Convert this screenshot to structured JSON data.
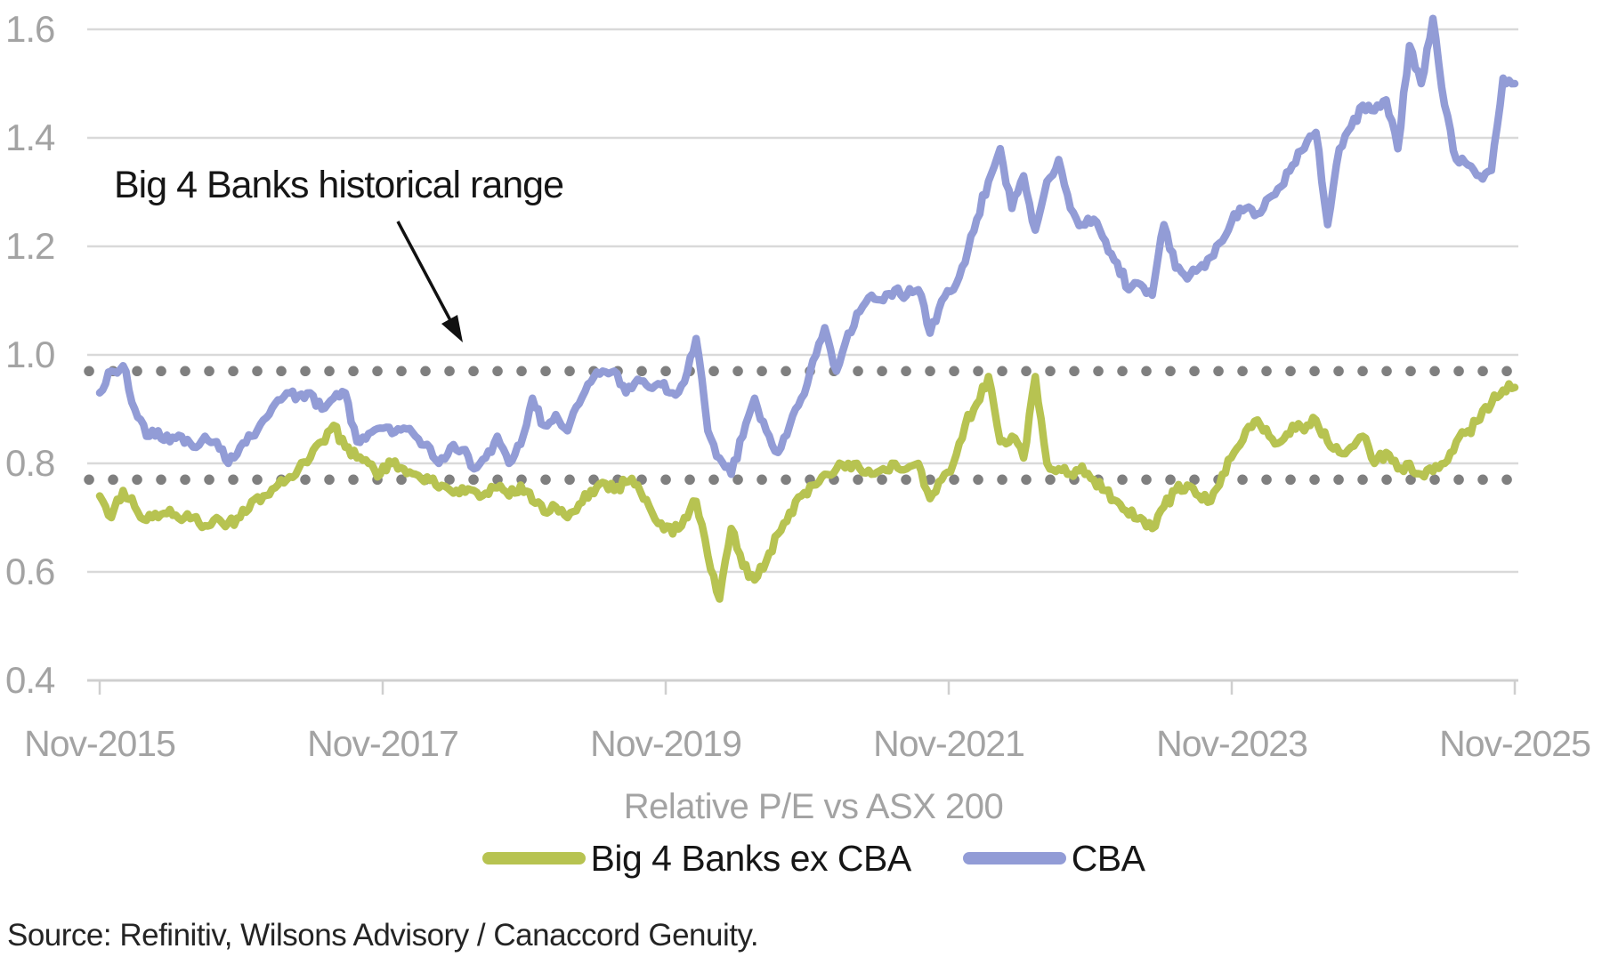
{
  "chart_data": {
    "type": "line",
    "subtitle": "Relative P/E vs ASX 200",
    "x_tick_labels": [
      "Nov-2015",
      "Nov-2017",
      "Nov-2019",
      "Nov-2021",
      "Nov-2023",
      "Nov-2025"
    ],
    "y_tick_labels": [
      "1.6",
      "1.4",
      "1.2",
      "1.0",
      "0.8",
      "0.6",
      "0.4"
    ],
    "y_ticks": [
      1.6,
      1.4,
      1.2,
      1.0,
      0.8,
      0.6,
      0.4
    ],
    "ylim": [
      0.4,
      1.6
    ],
    "x_start": "Nov-2015",
    "x_end": "Nov-2025",
    "points_interval": "monthly",
    "grid": "horizontal",
    "legend_position": "bottom",
    "reference_lines": {
      "label": "Big 4 Banks historical range",
      "upper": 0.97,
      "lower": 0.77,
      "style": "dotted",
      "color": "#7f7f7f"
    },
    "series": [
      {
        "name": "Big 4 Banks ex CBA",
        "color": "#b7c351",
        "values": [
          0.74,
          0.7,
          0.75,
          0.72,
          0.695,
          0.7,
          0.715,
          0.695,
          0.7,
          0.685,
          0.7,
          0.69,
          0.7,
          0.73,
          0.74,
          0.755,
          0.77,
          0.79,
          0.81,
          0.84,
          0.87,
          0.83,
          0.81,
          0.8,
          0.78,
          0.8,
          0.79,
          0.78,
          0.775,
          0.755,
          0.75,
          0.755,
          0.75,
          0.745,
          0.755,
          0.74,
          0.76,
          0.73,
          0.71,
          0.72,
          0.7,
          0.725,
          0.75,
          0.765,
          0.75,
          0.765,
          0.76,
          0.72,
          0.69,
          0.67,
          0.7,
          0.73,
          0.63,
          0.55,
          0.68,
          0.61,
          0.585,
          0.62,
          0.67,
          0.71,
          0.74,
          0.76,
          0.78,
          0.79,
          0.8,
          0.79,
          0.78,
          0.79,
          0.8,
          0.79,
          0.8,
          0.735,
          0.77,
          0.8,
          0.87,
          0.91,
          0.96,
          0.84,
          0.85,
          0.81,
          0.96,
          0.8,
          0.79,
          0.78,
          0.795,
          0.77,
          0.75,
          0.73,
          0.705,
          0.7,
          0.68,
          0.72,
          0.75,
          0.76,
          0.74,
          0.73,
          0.78,
          0.82,
          0.86,
          0.88,
          0.85,
          0.84,
          0.87,
          0.86,
          0.88,
          0.84,
          0.82,
          0.83,
          0.85,
          0.8,
          0.82,
          0.79,
          0.8,
          0.78,
          0.785,
          0.8,
          0.84,
          0.86,
          0.88,
          0.91,
          0.935,
          0.94
        ]
      },
      {
        "name": "CBA",
        "color": "#929cd6",
        "values": [
          0.93,
          0.97,
          0.98,
          0.9,
          0.85,
          0.86,
          0.84,
          0.85,
          0.83,
          0.85,
          0.84,
          0.8,
          0.83,
          0.85,
          0.88,
          0.91,
          0.93,
          0.925,
          0.93,
          0.9,
          0.92,
          0.93,
          0.84,
          0.855,
          0.865,
          0.855,
          0.865,
          0.85,
          0.835,
          0.8,
          0.83,
          0.825,
          0.79,
          0.81,
          0.85,
          0.8,
          0.835,
          0.92,
          0.87,
          0.89,
          0.86,
          0.91,
          0.95,
          0.97,
          0.97,
          0.93,
          0.955,
          0.94,
          0.945,
          0.93,
          0.95,
          1.03,
          0.86,
          0.81,
          0.78,
          0.85,
          0.92,
          0.86,
          0.82,
          0.87,
          0.92,
          0.99,
          1.05,
          0.97,
          1.04,
          1.08,
          1.11,
          1.1,
          1.12,
          1.11,
          1.12,
          1.04,
          1.1,
          1.12,
          1.17,
          1.25,
          1.32,
          1.38,
          1.27,
          1.33,
          1.23,
          1.32,
          1.36,
          1.27,
          1.24,
          1.25,
          1.21,
          1.17,
          1.12,
          1.13,
          1.11,
          1.24,
          1.16,
          1.14,
          1.16,
          1.18,
          1.21,
          1.26,
          1.27,
          1.26,
          1.29,
          1.31,
          1.35,
          1.38,
          1.41,
          1.24,
          1.38,
          1.42,
          1.46,
          1.45,
          1.47,
          1.38,
          1.57,
          1.5,
          1.62,
          1.46,
          1.36,
          1.35,
          1.33,
          1.34,
          1.51,
          1.5
        ]
      }
    ]
  },
  "annotation": {
    "text": "Big 4 Banks historical range"
  },
  "source": {
    "text": "Source: Refinitiv, Wilsons Advisory / Canaccord Genuity."
  },
  "colors": {
    "background": "#ffffff",
    "gridline": "#d9d9d9",
    "axis_line": "#cfcfcf",
    "tick_text": "#a3a3a3",
    "body_text": "#161616",
    "dotted_line": "#7f7f7f"
  }
}
